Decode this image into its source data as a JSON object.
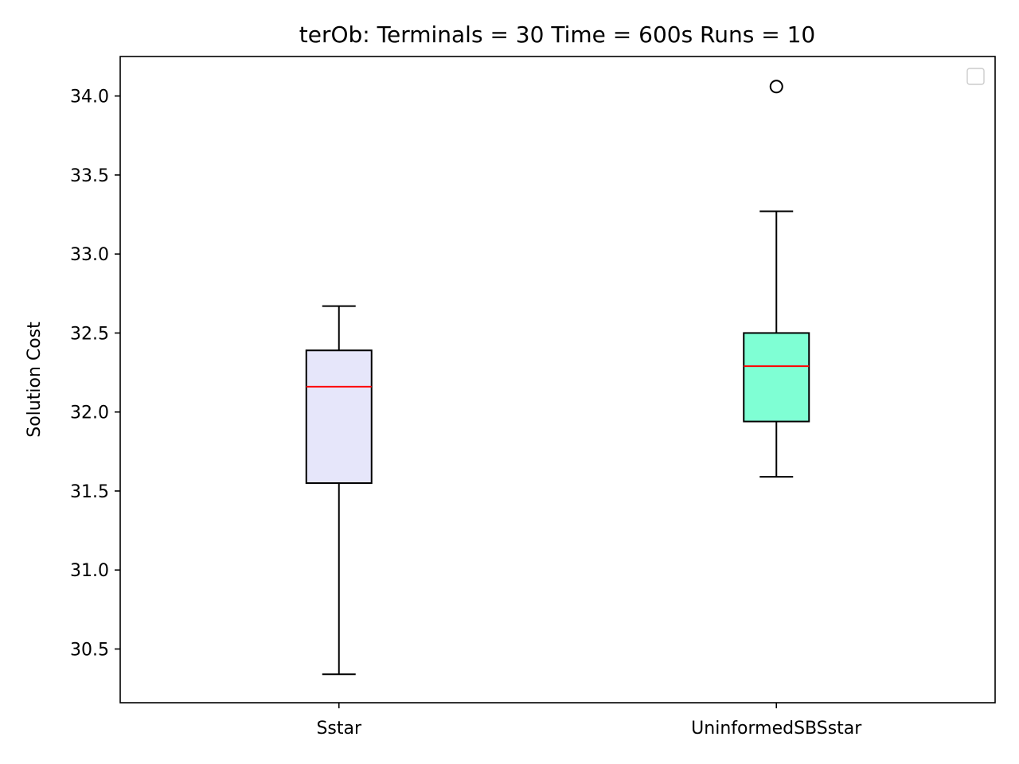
{
  "chart_data": {
    "type": "box",
    "title": "terOb:  Terminals = 30  Time = 600s  Runs = 10",
    "xlabel": "",
    "ylabel": "Solution Cost",
    "ylim": [
      30.16,
      34.25
    ],
    "yticks": [
      "30.5",
      "31.0",
      "31.5",
      "32.0",
      "32.5",
      "33.0",
      "33.5",
      "34.0"
    ],
    "grid": false,
    "legend": {
      "placement": "top-right",
      "entries": []
    },
    "categories": [
      "Sstar",
      "UninformedSBSstar"
    ],
    "boxes": [
      {
        "name": "Sstar",
        "whisker_low": 30.34,
        "q1": 31.55,
        "median": 32.16,
        "q3": 32.39,
        "whisker_high": 32.67,
        "outliers": [],
        "fill_color": "#e6e6fa"
      },
      {
        "name": "UninformedSBSstar",
        "whisker_low": 31.59,
        "q1": 31.94,
        "median": 32.29,
        "q3": 32.5,
        "whisker_high": 33.27,
        "outliers": [
          34.06
        ],
        "fill_color": "#7fffd4"
      }
    ],
    "median_color": "#ff0000",
    "line_color": "#000000"
  }
}
